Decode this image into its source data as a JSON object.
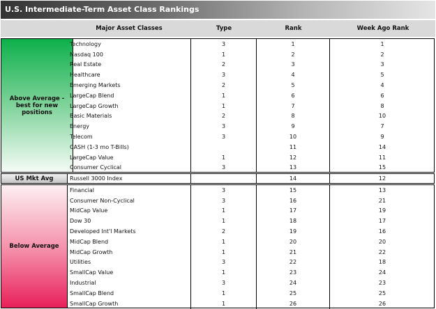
{
  "title": "U.S. Intermediate-Term Asset Class Rankings",
  "headers": {
    "asset": "Major Asset Classes",
    "type": "Type",
    "rank": "Rank",
    "week_ago": "Week Ago Rank"
  },
  "colors": {
    "above": "#0db04b",
    "below": "#e8205a",
    "title_bar": "#333333"
  },
  "above": {
    "label": "Above Average - best for new positions",
    "rows": [
      [
        "Technology",
        "3",
        "1",
        "1"
      ],
      [
        "Nasdaq 100",
        "1",
        "2",
        "2"
      ],
      [
        "Real Estate",
        "2",
        "3",
        "3"
      ],
      [
        "Healthcare",
        "3",
        "4",
        "5"
      ],
      [
        "Emerging Markets",
        "2",
        "5",
        "4"
      ],
      [
        "LargeCap Blend",
        "1",
        "6",
        "6"
      ],
      [
        "LargeCap Growth",
        "1",
        "7",
        "8"
      ],
      [
        "Basic Materials",
        "2",
        "8",
        "10"
      ],
      [
        "Energy",
        "3",
        "9",
        "7"
      ],
      [
        "Telecom",
        "3",
        "10",
        "9"
      ],
      [
        "CASH (1-3 mo T-Bills)",
        "",
        "11",
        "14"
      ],
      [
        "LargeCap Value",
        "1",
        "12",
        "11"
      ],
      [
        "Consumer Cyclical",
        "3",
        "13",
        "15"
      ]
    ]
  },
  "avg": {
    "label": "US Mkt Avg",
    "rows": [
      [
        "Russell 3000 Index",
        "",
        "14",
        "12"
      ]
    ]
  },
  "below": {
    "label": "Below Average",
    "rows": [
      [
        "Financial",
        "3",
        "15",
        "13"
      ],
      [
        "Consumer Non-Cyclical",
        "3",
        "16",
        "21"
      ],
      [
        "MidCap Value",
        "1",
        "17",
        "19"
      ],
      [
        "Dow 30",
        "1",
        "18",
        "17"
      ],
      [
        "Developed Int'l Markets",
        "2",
        "19",
        "16"
      ],
      [
        "MidCap Blend",
        "1",
        "20",
        "20"
      ],
      [
        "MidCap Growth",
        "1",
        "21",
        "22"
      ],
      [
        "Utilities",
        "3",
        "22",
        "18"
      ],
      [
        "SmallCap Value",
        "1",
        "23",
        "24"
      ],
      [
        "Industrial",
        "3",
        "24",
        "23"
      ],
      [
        "SmallCap Blend",
        "1",
        "25",
        "25"
      ],
      [
        "SmallCap Growth",
        "1",
        "26",
        "26"
      ]
    ]
  }
}
